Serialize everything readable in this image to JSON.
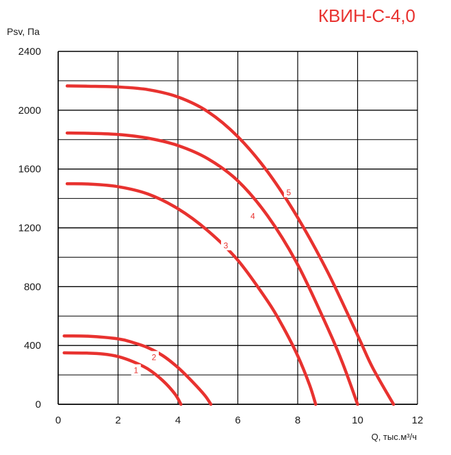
{
  "chart_data": {
    "type": "line",
    "title": "КВИН-С-4,0",
    "xlabel": "Q, тыс.м³/ч",
    "ylabel": "Psv, Па",
    "xlim": [
      0,
      12
    ],
    "ylim": [
      0,
      2400
    ],
    "x_ticks": [
      "0",
      "2",
      "4",
      "6",
      "8",
      "10",
      "12"
    ],
    "y_ticks": [
      "0",
      "400",
      "800",
      "1200",
      "1600",
      "2000",
      "2400"
    ],
    "grid": true,
    "color": "#e8322f",
    "series": [
      {
        "name": "1",
        "x": [
          0.2,
          1.0,
          1.5,
          2.0,
          2.5,
          3.0,
          3.5,
          3.9,
          4.1
        ],
        "y": [
          350,
          348,
          342,
          325,
          290,
          240,
          160,
          70,
          0
        ]
      },
      {
        "name": "2",
        "x": [
          0.2,
          1.0,
          2.0,
          2.5,
          3.0,
          3.5,
          4.0,
          4.5,
          4.9,
          5.1
        ],
        "y": [
          465,
          463,
          445,
          420,
          385,
          330,
          250,
          150,
          60,
          0
        ]
      },
      {
        "name": "3",
        "x": [
          0.3,
          1.0,
          2.0,
          3.0,
          4.0,
          5.0,
          6.0,
          7.0,
          7.5,
          8.0,
          8.4,
          8.6
        ],
        "y": [
          1500,
          1498,
          1480,
          1430,
          1330,
          1180,
          980,
          700,
          530,
          330,
          130,
          0
        ]
      },
      {
        "name": "4",
        "x": [
          0.3,
          1.0,
          2.0,
          3.0,
          4.0,
          5.0,
          6.0,
          7.0,
          8.0,
          9.0,
          9.5,
          10.0
        ],
        "y": [
          1845,
          1843,
          1835,
          1810,
          1760,
          1670,
          1520,
          1280,
          950,
          520,
          280,
          0
        ]
      },
      {
        "name": "5",
        "x": [
          0.3,
          1.0,
          2.0,
          3.0,
          4.0,
          5.0,
          6.0,
          7.0,
          8.0,
          9.0,
          10.0,
          10.5,
          11.2
        ],
        "y": [
          2165,
          2163,
          2158,
          2140,
          2090,
          1990,
          1820,
          1580,
          1270,
          900,
          470,
          250,
          0
        ]
      }
    ],
    "labels": [
      {
        "text": "1",
        "x": 2.6,
        "y": 230
      },
      {
        "text": "2",
        "x": 3.2,
        "y": 320
      },
      {
        "text": "3",
        "x": 5.6,
        "y": 1080
      },
      {
        "text": "4",
        "x": 6.5,
        "y": 1280
      },
      {
        "text": "5",
        "x": 7.7,
        "y": 1440
      }
    ]
  }
}
